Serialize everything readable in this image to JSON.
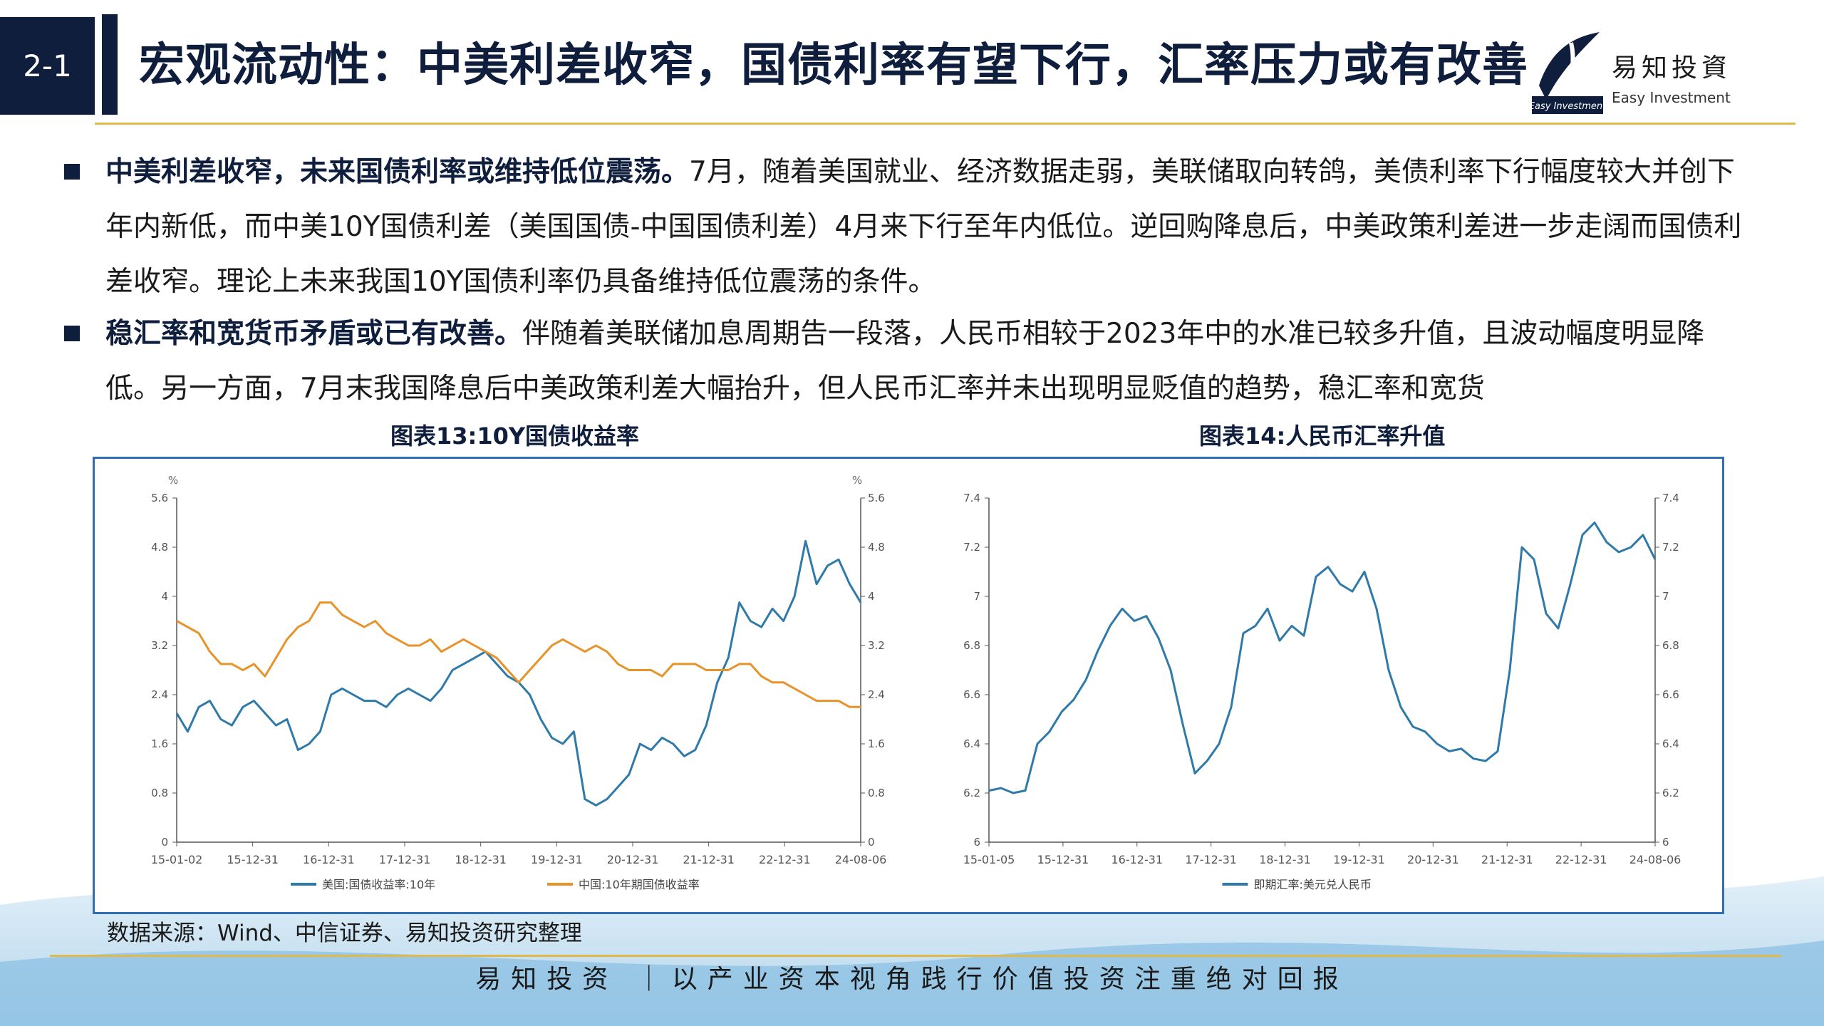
{
  "header": {
    "page_number": "2-1",
    "title": "宏观流动性：中美利差收窄，国债利率有望下行，汇率压力或有改善",
    "logo_text_cn": "易知投資",
    "logo_text_en": "Easy Investment",
    "logo_mark_text": "Easy Investment"
  },
  "bullets": [
    {
      "bold": "中美利差收窄，未来国债利率或维持低位震荡。",
      "text": "7月，随着美国就业、经济数据走弱，美联储取向转鸽，美债利率下行幅度较大并创下年内新低，而中美10Y国债利差（美国国债-中国国债利差）4月来下行至年内低位。逆回购降息后，中美政策利差进一步走阔而国债利差收窄。理论上未来我国10Y国债利率仍具备维持低位震荡的条件。"
    },
    {
      "bold": "稳汇率和宽货币矛盾或已有改善。",
      "text": "伴随着美联储加息周期告一段落，人民币相较于2023年中的水准已较多升值，且波动幅度明显降低。另一方面，7月末我国降息后中美政策利差大幅抬升，但人民币汇率并未出现明显贬值的趋势，稳汇率和宽货"
    }
  ],
  "charts": {
    "left_title": "图表13:10Y国债收益率",
    "right_title": "图表14:人民币汇率升值"
  },
  "chart_data": [
    {
      "type": "line",
      "title": "图表13:10Y国债收益率",
      "unit_left": "%",
      "unit_right": "%",
      "x_ticks": [
        "15-01-02",
        "15-12-31",
        "16-12-31",
        "17-12-31",
        "18-12-31",
        "19-12-31",
        "20-12-31",
        "21-12-31",
        "22-12-31",
        "24-08-06"
      ],
      "ylim": [
        0,
        5.6
      ],
      "y_ticks": [
        "0",
        "0.8",
        "1.6",
        "2.4",
        "3.2",
        "4",
        "4.8",
        "5.6"
      ],
      "series": [
        {
          "name": "美国:国债收益率:10年",
          "color": "#2f7aa8",
          "values": [
            2.1,
            1.8,
            2.2,
            2.3,
            2.0,
            1.9,
            2.2,
            2.3,
            2.1,
            1.9,
            2.0,
            1.5,
            1.6,
            1.8,
            2.4,
            2.5,
            2.4,
            2.3,
            2.3,
            2.2,
            2.4,
            2.5,
            2.4,
            2.3,
            2.5,
            2.8,
            2.9,
            3.0,
            3.1,
            2.9,
            2.7,
            2.6,
            2.4,
            2.0,
            1.7,
            1.6,
            1.8,
            0.7,
            0.6,
            0.7,
            0.9,
            1.1,
            1.6,
            1.5,
            1.7,
            1.6,
            1.4,
            1.5,
            1.9,
            2.6,
            3.0,
            3.9,
            3.6,
            3.5,
            3.8,
            3.6,
            4.0,
            4.9,
            4.2,
            4.5,
            4.6,
            4.2,
            3.9
          ]
        },
        {
          "name": "中国:10年期国债收益率",
          "color": "#e8922a",
          "values": [
            3.6,
            3.5,
            3.4,
            3.1,
            2.9,
            2.9,
            2.8,
            2.9,
            2.7,
            3.0,
            3.3,
            3.5,
            3.6,
            3.9,
            3.9,
            3.7,
            3.6,
            3.5,
            3.6,
            3.4,
            3.3,
            3.2,
            3.2,
            3.3,
            3.1,
            3.2,
            3.3,
            3.2,
            3.1,
            3.0,
            2.8,
            2.6,
            2.8,
            3.0,
            3.2,
            3.3,
            3.2,
            3.1,
            3.2,
            3.1,
            2.9,
            2.8,
            2.8,
            2.8,
            2.7,
            2.9,
            2.9,
            2.9,
            2.8,
            2.8,
            2.8,
            2.9,
            2.9,
            2.7,
            2.6,
            2.6,
            2.5,
            2.4,
            2.3,
            2.3,
            2.3,
            2.2,
            2.2
          ]
        }
      ],
      "grid": false,
      "legend": "bottom"
    },
    {
      "type": "line",
      "title": "图表14:人民币汇率升值",
      "x_ticks": [
        "15-01-05",
        "15-12-31",
        "16-12-31",
        "17-12-31",
        "18-12-31",
        "19-12-31",
        "20-12-31",
        "21-12-31",
        "22-12-31",
        "24-08-06"
      ],
      "ylim": [
        6,
        7.4
      ],
      "y_ticks": [
        "6",
        "6.2",
        "6.4",
        "6.6",
        "6.8",
        "7",
        "7.2",
        "7.4"
      ],
      "series": [
        {
          "name": "即期汇率:美元兑人民币",
          "color": "#2f7aa8",
          "values": [
            6.21,
            6.22,
            6.2,
            6.21,
            6.4,
            6.45,
            6.53,
            6.58,
            6.66,
            6.78,
            6.88,
            6.95,
            6.9,
            6.92,
            6.83,
            6.7,
            6.48,
            6.28,
            6.33,
            6.4,
            6.55,
            6.85,
            6.88,
            6.95,
            6.82,
            6.88,
            6.84,
            7.08,
            7.12,
            7.05,
            7.02,
            7.1,
            6.95,
            6.7,
            6.55,
            6.47,
            6.45,
            6.4,
            6.37,
            6.38,
            6.34,
            6.33,
            6.37,
            6.7,
            7.2,
            7.15,
            6.93,
            6.87,
            7.05,
            7.25,
            7.3,
            7.22,
            7.18,
            7.2,
            7.25,
            7.15
          ]
        }
      ],
      "grid": false,
      "legend": "bottom"
    }
  ],
  "source_text": "数据来源：Wind、中信证券、易知投资研究整理",
  "footer": {
    "text": "易知投资 ｜以产业资本视角践行价值投资注重绝对回报"
  }
}
